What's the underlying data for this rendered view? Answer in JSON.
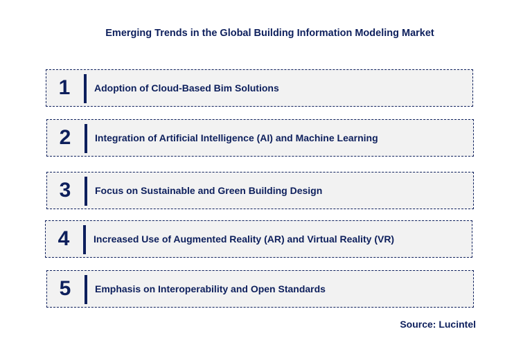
{
  "title": "Emerging Trends in the Global Building Information Modeling Market",
  "items": [
    {
      "number": "1",
      "label": "Adoption of Cloud-Based Bim Solutions"
    },
    {
      "number": "2",
      "label": "Integration of Artificial Intelligence (AI) and Machine Learning"
    },
    {
      "number": "3",
      "label": "Focus on Sustainable and Green Building Design"
    },
    {
      "number": "4",
      "label": "Increased Use of Augmented Reality (AR) and Virtual Reality (VR)"
    },
    {
      "number": "5",
      "label": "Emphasis on Interoperability and Open Standards"
    }
  ],
  "source": "Source: Lucintel",
  "colors": {
    "text": "#0d1f5c",
    "box_bg": "#f2f2f2"
  }
}
